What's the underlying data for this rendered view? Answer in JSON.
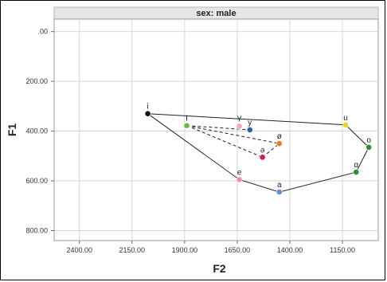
{
  "chart_data": {
    "type": "scatter",
    "title": "sex: male",
    "xlabel": "F2",
    "ylabel": "F1",
    "x_reversed": true,
    "y_reversed": true,
    "xlim": [
      2520,
      980
    ],
    "ylim": [
      -50,
      840
    ],
    "xticks": [
      {
        "value": 2400,
        "label": "2400.00"
      },
      {
        "value": 2150,
        "label": "2150.00"
      },
      {
        "value": 1900,
        "label": "1900.00"
      },
      {
        "value": 1650,
        "label": "1650.00"
      },
      {
        "value": 1400,
        "label": "1400.00"
      },
      {
        "value": 1150,
        "label": "1150.00"
      }
    ],
    "yticks": [
      {
        "value": 0,
        "label": ".00"
      },
      {
        "value": 200,
        "label": "200.00"
      },
      {
        "value": 400,
        "label": "400.00"
      },
      {
        "value": 600,
        "label": "600.00"
      },
      {
        "value": 800,
        "label": "800.00"
      }
    ],
    "grid": true,
    "points": [
      {
        "label": "i",
        "x": 2075,
        "y": 330,
        "color": "#111111"
      },
      {
        "label": "I",
        "x": 1890,
        "y": 378,
        "color": "#6dbb3d"
      },
      {
        "label": "Y",
        "x": 1640,
        "y": 380,
        "color": "#f4a3c0"
      },
      {
        "label": "y",
        "x": 1590,
        "y": 395,
        "color": "#2e5fa8"
      },
      {
        "label": "ø",
        "x": 1450,
        "y": 450,
        "color": "#ee7a22"
      },
      {
        "label": "ə",
        "x": 1530,
        "y": 505,
        "color": "#cc1f43"
      },
      {
        "label": "e",
        "x": 1640,
        "y": 595,
        "color": "#f48cb6"
      },
      {
        "label": "a",
        "x": 1450,
        "y": 645,
        "color": "#5b8fd6"
      },
      {
        "label": "u",
        "x": 1135,
        "y": 375,
        "color": "#f3d21e"
      },
      {
        "label": "o",
        "x": 1025,
        "y": 465,
        "color": "#2e8c3a"
      },
      {
        "label": "ɑ",
        "x": 1085,
        "y": 565,
        "color": "#2e8c3a"
      }
    ],
    "outer_polygon": [
      "i",
      "u",
      "o",
      "ɑ",
      "a",
      "e",
      "i"
    ],
    "inner_dashed": [
      [
        "I",
        "ø"
      ],
      [
        "I",
        "ə"
      ],
      [
        "ə",
        "ø"
      ],
      [
        "I",
        "y"
      ]
    ]
  }
}
